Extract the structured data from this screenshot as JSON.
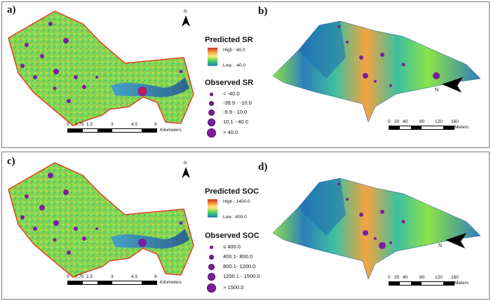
{
  "panels": {
    "a": {
      "label": "a)"
    },
    "b": {
      "label": "b)"
    },
    "c": {
      "label": "c)"
    },
    "d": {
      "label": "d)"
    }
  },
  "legend_sr": {
    "predicted_title": "Predicted SR",
    "high": "High : 40.0",
    "low": "Low : -40.0",
    "observed_title": "Observed SR",
    "items": [
      "< -40.0",
      "-39.9 - -10.0",
      "-9.9 - 10.0",
      "10.1 - 40.0",
      "> 40.0"
    ]
  },
  "legend_soc": {
    "predicted_title": "Predicted SOC",
    "high": "High : 1400.0",
    "low": "Low : 400.0",
    "observed_title": "Observed SOC",
    "items": [
      "≤ 400.0",
      "400.1- 800.0",
      "800.1- 1200.0",
      "1200.1 - 1500.0",
      "> 1500.0"
    ]
  },
  "scale_2d": {
    "ticks": [
      "0",
      "0.75",
      "1.5",
      "3",
      "4.5",
      "6"
    ],
    "unit": "Kilometers"
  },
  "scale_3d": {
    "ticks": [
      "0",
      "20",
      "40",
      "80",
      "120",
      "160"
    ],
    "unit": "Meters"
  },
  "north_label": "N",
  "three_d_north_label": "N",
  "colors": {
    "observed_point": "#7a1fa0",
    "ramp_high": "#d7301f",
    "ramp_mid": "#fee88b",
    "ramp_green": "#8ee24a",
    "ramp_low": "#2c7fb8",
    "boundary": "#e0431f"
  }
}
